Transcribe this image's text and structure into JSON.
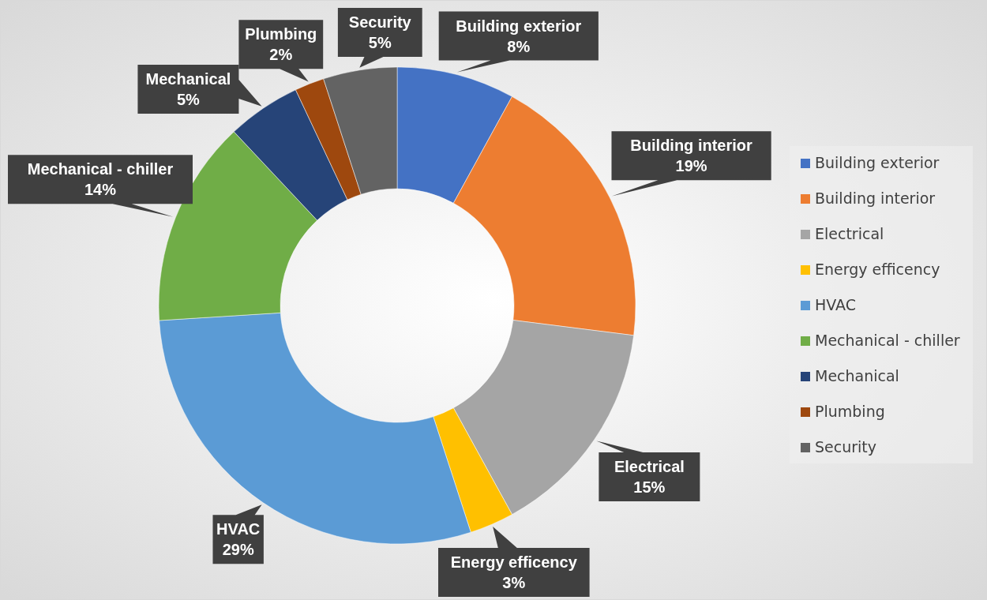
{
  "chart_data": {
    "type": "donut",
    "categories": [
      "Building exterior",
      "Building interior",
      "Electrical",
      "Energy efficency",
      "HVAC",
      "Mechanical - chiller",
      "Mechanical",
      "Plumbing",
      "Security"
    ],
    "values": [
      8,
      19,
      15,
      3,
      29,
      14,
      5,
      2,
      5
    ],
    "value_labels": [
      "8%",
      "19%",
      "15%",
      "3%",
      "29%",
      "14%",
      "5%",
      "2%",
      "5%"
    ],
    "colors": [
      "#4472c4",
      "#ed7d31",
      "#a5a5a5",
      "#ffc000",
      "#5b9bd5",
      "#70ad47",
      "#264478",
      "#9e480e",
      "#636363"
    ],
    "legend": "right"
  }
}
